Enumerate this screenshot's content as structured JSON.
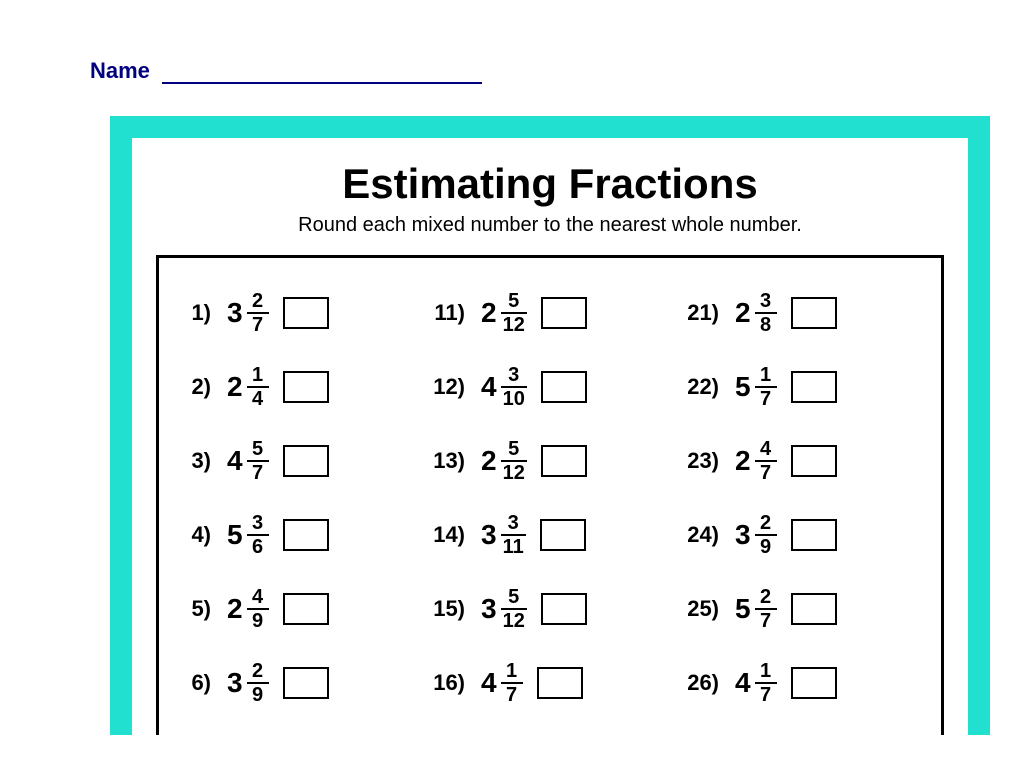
{
  "header": {
    "name_label": "Name"
  },
  "worksheet": {
    "title": "Estimating Fractions",
    "subtitle": "Round each mixed number to the nearest whole number.",
    "border_color": "#22e0cf",
    "title_font": "Comic Sans MS",
    "title_fontsize": 42,
    "subtitle_fontsize": 20,
    "name_color": "#000080",
    "columns": [
      [
        {
          "n": "1)",
          "whole": "3",
          "numer": "2",
          "denom": "7"
        },
        {
          "n": "2)",
          "whole": "2",
          "numer": "1",
          "denom": "4"
        },
        {
          "n": "3)",
          "whole": "4",
          "numer": "5",
          "denom": "7"
        },
        {
          "n": "4)",
          "whole": "5",
          "numer": "3",
          "denom": "6"
        },
        {
          "n": "5)",
          "whole": "2",
          "numer": "4",
          "denom": "9"
        },
        {
          "n": "6)",
          "whole": "3",
          "numer": "2",
          "denom": "9"
        }
      ],
      [
        {
          "n": "11)",
          "whole": "2",
          "numer": "5",
          "denom": "12"
        },
        {
          "n": "12)",
          "whole": "4",
          "numer": "3",
          "denom": "10"
        },
        {
          "n": "13)",
          "whole": "2",
          "numer": "5",
          "denom": "12"
        },
        {
          "n": "14)",
          "whole": "3",
          "numer": "3",
          "denom": "11"
        },
        {
          "n": "15)",
          "whole": "3",
          "numer": "5",
          "denom": "12"
        },
        {
          "n": "16)",
          "whole": "4",
          "numer": "1",
          "denom": "7"
        }
      ],
      [
        {
          "n": "21)",
          "whole": "2",
          "numer": "3",
          "denom": "8"
        },
        {
          "n": "22)",
          "whole": "5",
          "numer": "1",
          "denom": "7"
        },
        {
          "n": "23)",
          "whole": "2",
          "numer": "4",
          "denom": "7"
        },
        {
          "n": "24)",
          "whole": "3",
          "numer": "2",
          "denom": "9"
        },
        {
          "n": "25)",
          "whole": "5",
          "numer": "2",
          "denom": "7"
        },
        {
          "n": "26)",
          "whole": "4",
          "numer": "1",
          "denom": "7"
        }
      ]
    ]
  }
}
